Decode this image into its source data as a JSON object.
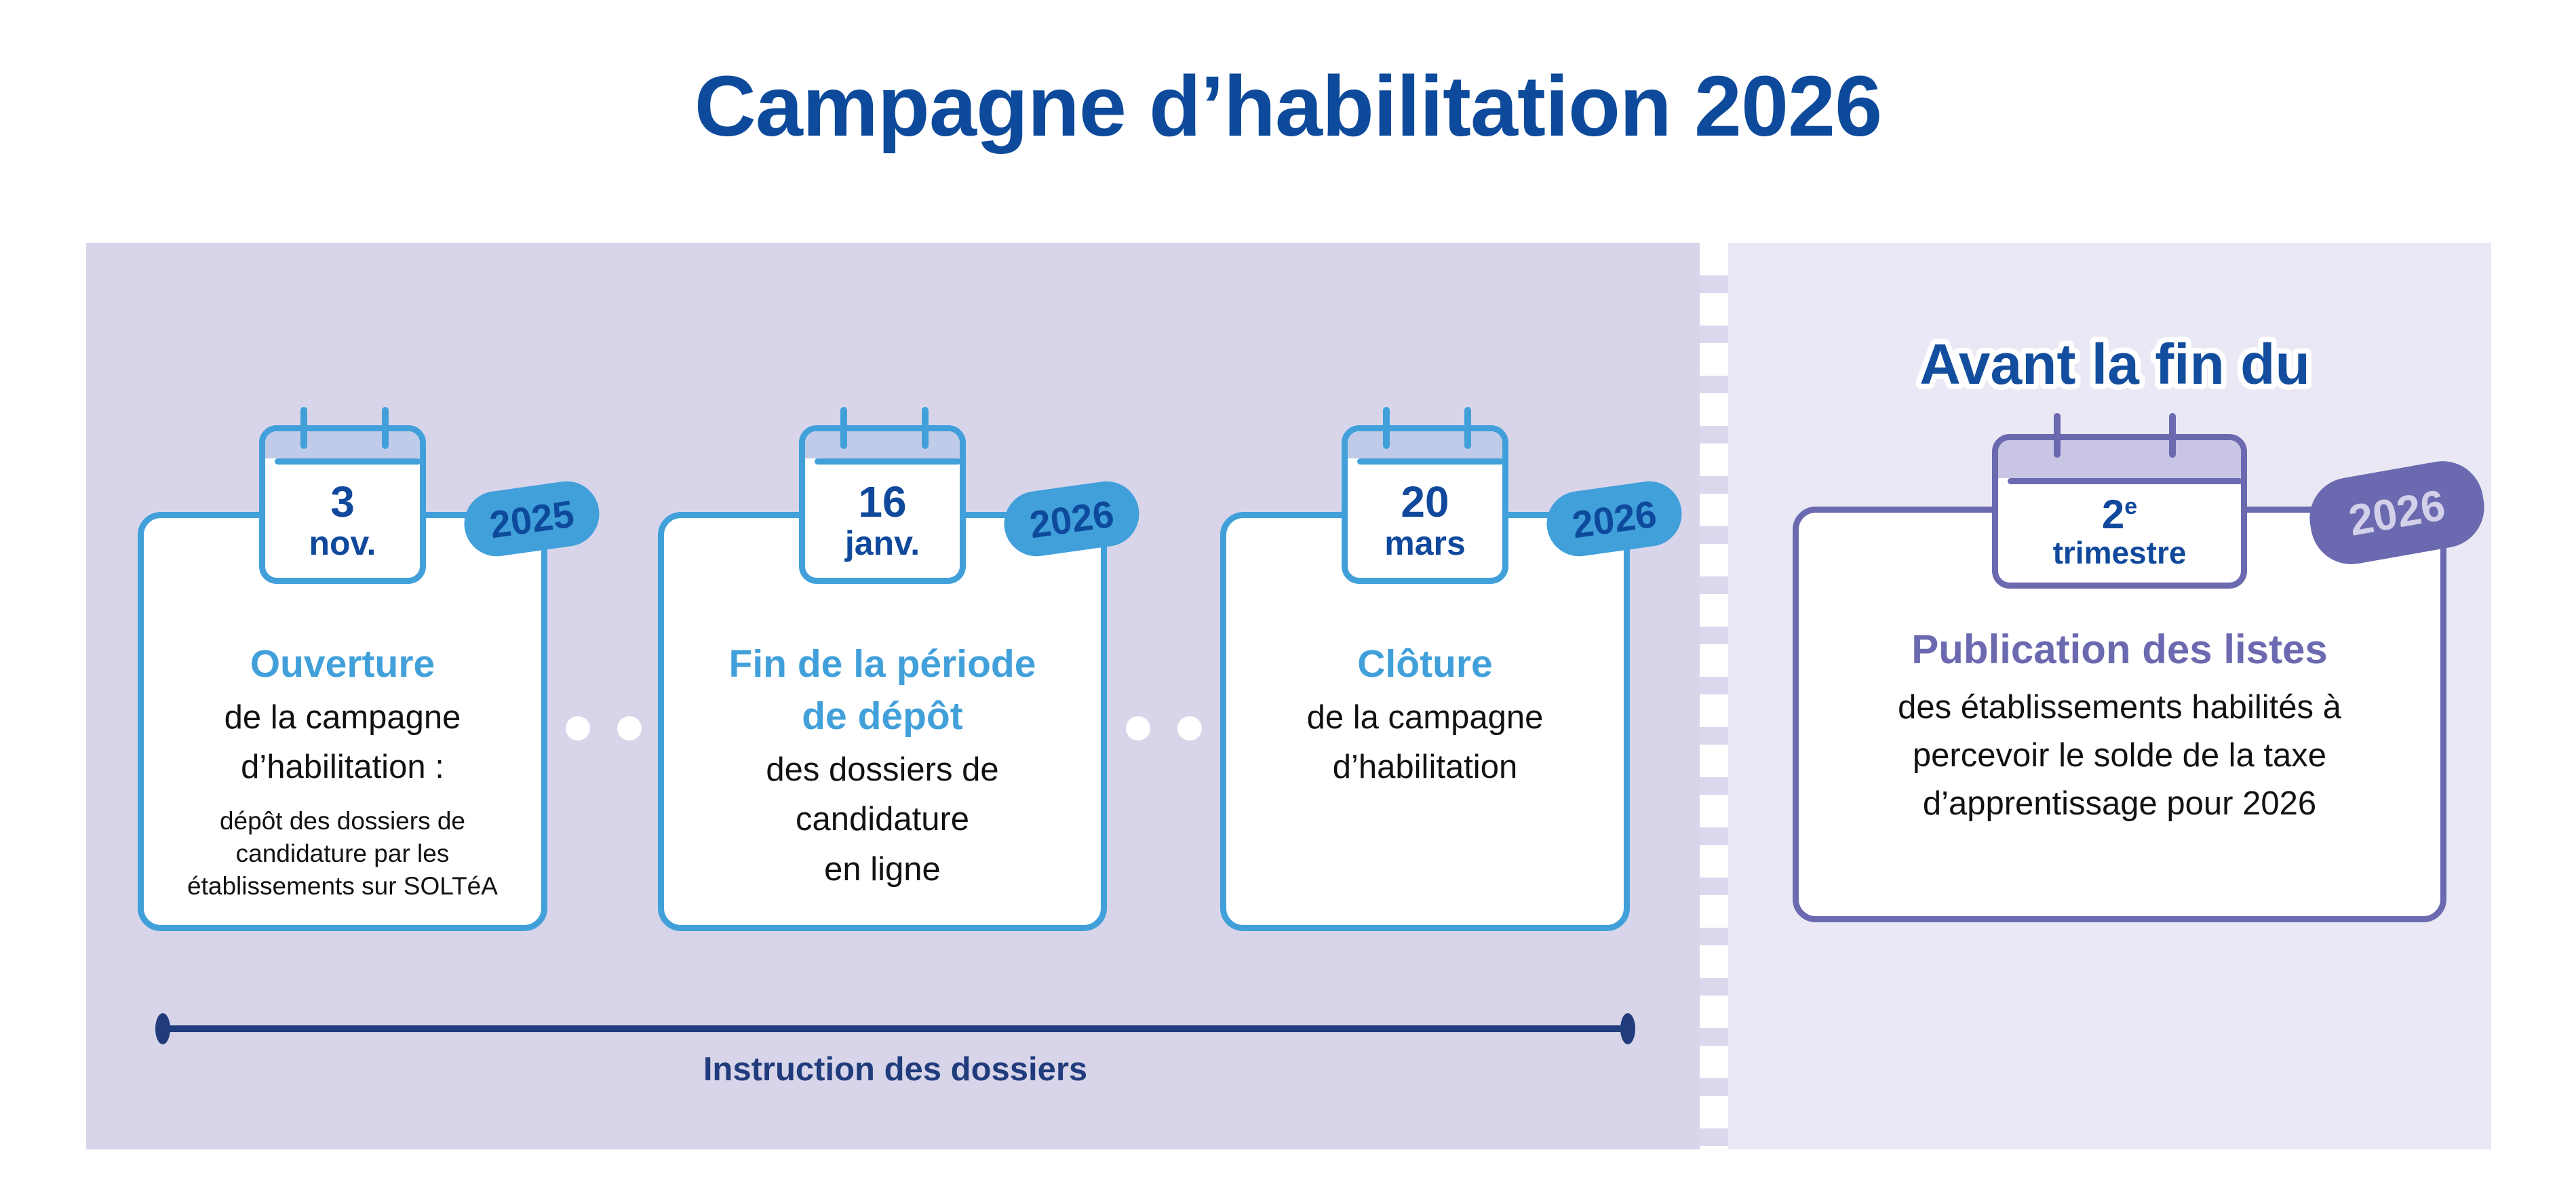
{
  "title": "Campagne d’habilitation 2026",
  "colors": {
    "title_blue": "#0e4a9b",
    "accent_light_blue": "#41a0da",
    "accent_purple": "#6b69af",
    "date_blue": "#10499c",
    "navy": "#203c7c",
    "panel_left_bg": "#d8d5ea",
    "panel_right_bg": "#eae8f4",
    "calendar_band_blue": "#bfcbe8",
    "calendar_band_purple": "#c9c6e5",
    "badge_purple_text": "#d3d0ea"
  },
  "milestones": [
    {
      "date_line1": "3",
      "date_line2": "nov.",
      "year": "2025",
      "heading": "Ouverture",
      "body": "de la campagne\nd’habilitation :",
      "note": "dépôt des dossiers de\ncandidature par les\nétablissements sur SOLTéA"
    },
    {
      "date_line1": "16",
      "date_line2": "janv.",
      "year": "2026",
      "heading": "Fin de la période\nde dépôt",
      "body": "des dossiers de\ncandidature\nen ligne"
    },
    {
      "date_line1": "20",
      "date_line2": "mars",
      "year": "2026",
      "heading": "Clôture",
      "body": "de la campagne\nd’habilitation"
    },
    {
      "pre_heading": "Avant la fin du",
      "date_line1": "2",
      "date_sup": "e",
      "date_line2": "trimestre",
      "year": "2026",
      "heading": "Publication des listes",
      "body": "des établissements habilités à\npercevoir le solde de la taxe\nd’apprentissage pour 2026"
    }
  ],
  "timeline": {
    "label": "Instruction des dossiers"
  }
}
